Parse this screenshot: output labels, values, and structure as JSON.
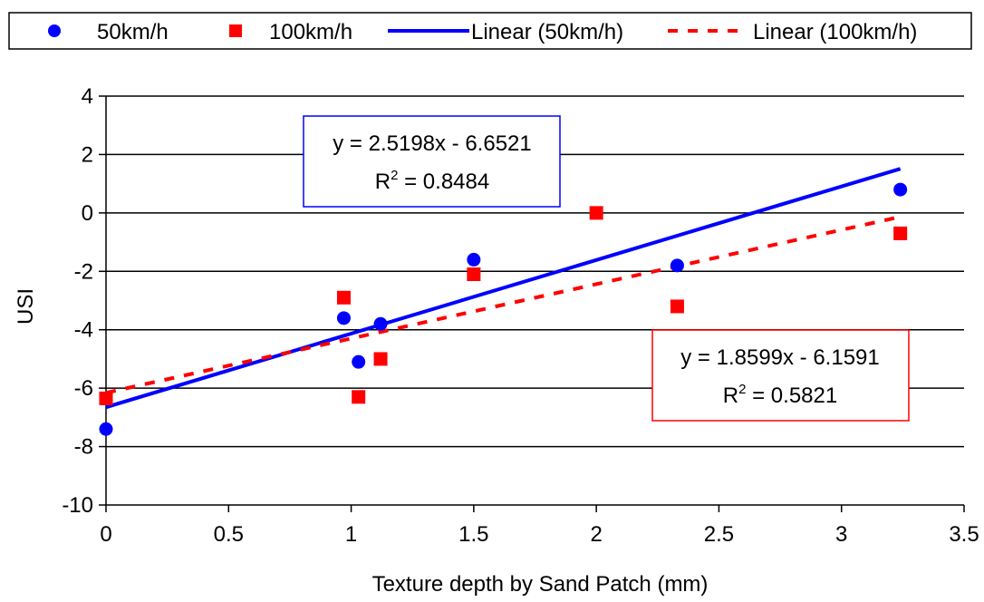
{
  "chart_data": {
    "type": "scatter",
    "xlabel": "Texture depth by Sand Patch (mm)",
    "ylabel": "USI",
    "xlim": [
      0,
      3.5
    ],
    "ylim": [
      -10,
      4
    ],
    "xticks": [
      0,
      0.5,
      1,
      1.5,
      2,
      2.5,
      3,
      3.5
    ],
    "xtick_labels": [
      "0",
      "0.5",
      "1",
      "1.5",
      "2",
      "2.5",
      "3",
      "3.5"
    ],
    "yticks": [
      -10,
      -8,
      -6,
      -4,
      -2,
      0,
      2,
      4
    ],
    "ytick_labels": [
      "-10",
      "-8",
      "-6",
      "-4",
      "-2",
      "0",
      "2",
      "4"
    ],
    "grid": "horizontal",
    "legend_position": "top",
    "series": [
      {
        "name": "50km/h",
        "marker": "circle",
        "color": "#0000ff",
        "points": [
          {
            "x": 0,
            "y": -7.4
          },
          {
            "x": 0.97,
            "y": -3.6
          },
          {
            "x": 1.03,
            "y": -5.1
          },
          {
            "x": 1.12,
            "y": -3.8
          },
          {
            "x": 1.5,
            "y": -1.6
          },
          {
            "x": 2.33,
            "y": -1.8
          },
          {
            "x": 3.24,
            "y": 0.8
          }
        ]
      },
      {
        "name": "100km/h",
        "marker": "square",
        "color": "#ff0000",
        "points": [
          {
            "x": 0,
            "y": -6.35
          },
          {
            "x": 0.97,
            "y": -2.9
          },
          {
            "x": 1.03,
            "y": -6.3
          },
          {
            "x": 1.12,
            "y": -5.0
          },
          {
            "x": 1.5,
            "y": -2.1
          },
          {
            "x": 2.0,
            "y": 0.0
          },
          {
            "x": 2.33,
            "y": -3.2
          },
          {
            "x": 3.24,
            "y": -0.7
          }
        ]
      }
    ],
    "trendlines": [
      {
        "name": "Linear (50km/h)",
        "color": "#0000ff",
        "style": "solid",
        "slope": 2.5198,
        "intercept": -6.6521,
        "x_range": [
          0,
          3.24
        ],
        "equation": "y = 2.5198x - 6.6521",
        "r2_prefix": "R",
        "r2_sup": "2",
        "r2_value": " = 0.8484"
      },
      {
        "name": "Linear (100km/h)",
        "color": "#ff0000",
        "style": "dashed",
        "slope": 1.8599,
        "intercept": -6.1591,
        "x_range": [
          0,
          3.24
        ],
        "equation": "y = 1.8599x - 6.1591",
        "r2_prefix": "R",
        "r2_sup": "2",
        "r2_value": " = 0.5821"
      }
    ],
    "legend": [
      {
        "label": "50km/h",
        "symbol": "circle",
        "color": "#0000ff"
      },
      {
        "label": "100km/h",
        "symbol": "square",
        "color": "#ff0000"
      },
      {
        "label": "Linear (50km/h)",
        "symbol": "solid-line",
        "color": "#0000ff"
      },
      {
        "label": "Linear (100km/h)",
        "symbol": "dashed-line",
        "color": "#ff0000"
      }
    ]
  }
}
